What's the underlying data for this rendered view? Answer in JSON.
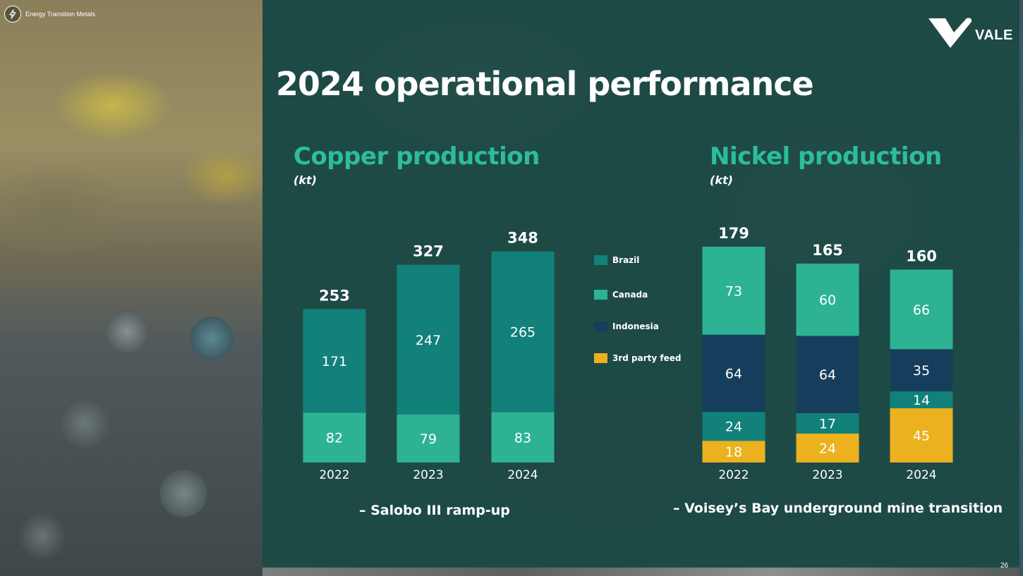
{
  "header": {
    "brand_tag": "Energy Transition Metals",
    "logo_text": "VALE",
    "title": "2024 operational performance",
    "slide_number": "26"
  },
  "colors": {
    "brazil": "#11817a",
    "canada": "#2db394",
    "indonesia": "#163e5c",
    "third_party": "#ebb11e",
    "panel": "#1e4a46",
    "heading_green": "#2dbd9a"
  },
  "legend": [
    {
      "label": "Brazil",
      "color": "#11817a"
    },
    {
      "label": "Canada",
      "color": "#2db394"
    },
    {
      "label": "Indonesia",
      "color": "#163e5c"
    },
    {
      "label": "3rd party feed",
      "color": "#ebb11e"
    }
  ],
  "copper": {
    "title": "Copper production",
    "unit": "(kt)",
    "footnote": "– Salobo III ramp-up"
  },
  "nickel": {
    "title": "Nickel production",
    "unit": "(kt)",
    "footnote": "– Voisey’s Bay underground mine transition"
  },
  "chart_data": [
    {
      "type": "bar",
      "stacked": true,
      "title": "Copper production",
      "ylabel": "(kt)",
      "categories": [
        "2022",
        "2023",
        "2024"
      ],
      "series": [
        {
          "name": "Canada",
          "color": "#2db394",
          "values": [
            82,
            79,
            83
          ]
        },
        {
          "name": "Brazil",
          "color": "#11817a",
          "values": [
            171,
            247,
            265
          ]
        }
      ],
      "totals": [
        253,
        327,
        348
      ],
      "legend_position": "right"
    },
    {
      "type": "bar",
      "stacked": true,
      "title": "Nickel production",
      "ylabel": "(kt)",
      "categories": [
        "2022",
        "2023",
        "2024"
      ],
      "series": [
        {
          "name": "3rd party feed",
          "color": "#ebb11e",
          "values": [
            18,
            24,
            45
          ]
        },
        {
          "name": "Brazil",
          "color": "#11817a",
          "values": [
            24,
            17,
            14
          ]
        },
        {
          "name": "Indonesia",
          "color": "#163e5c",
          "values": [
            64,
            64,
            35
          ]
        },
        {
          "name": "Canada",
          "color": "#2db394",
          "values": [
            73,
            60,
            66
          ]
        }
      ],
      "totals": [
        179,
        165,
        160
      ],
      "legend_position": "left"
    }
  ]
}
